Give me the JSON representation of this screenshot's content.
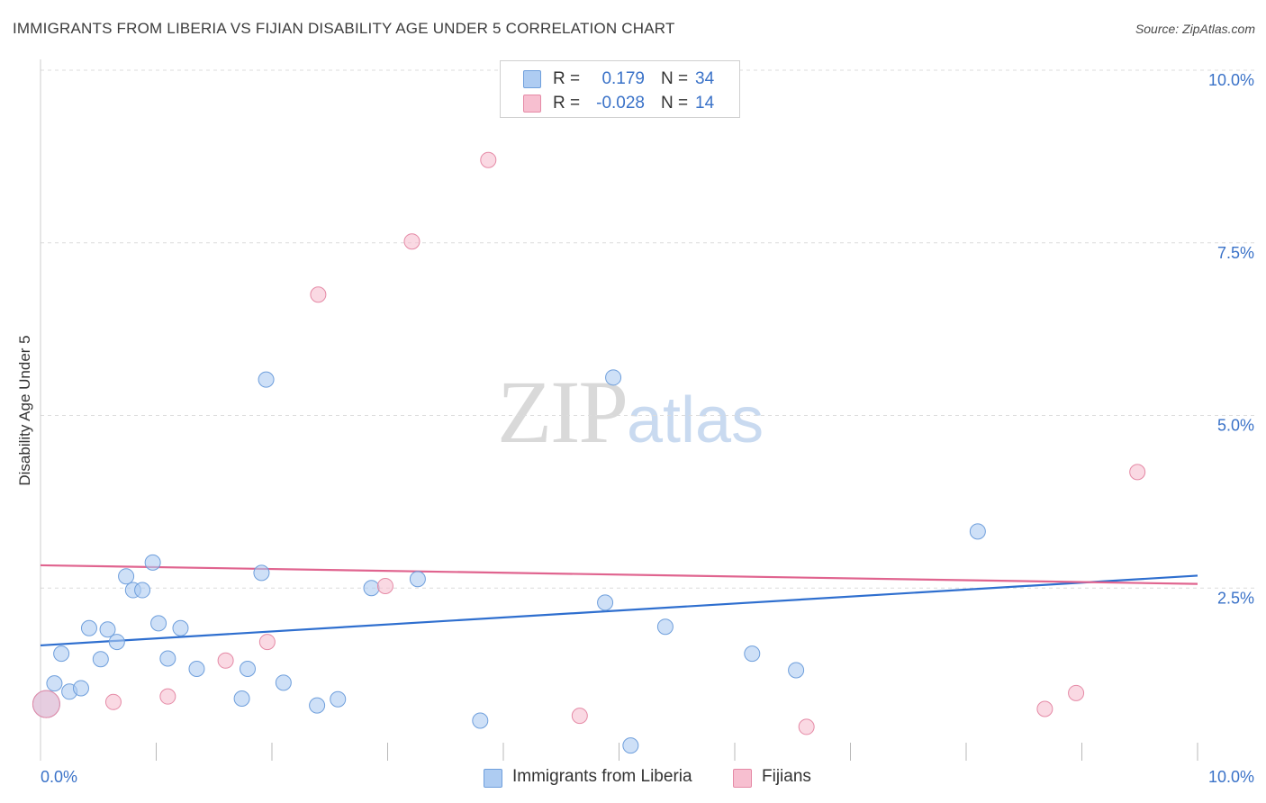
{
  "header": {
    "title": "IMMIGRANTS FROM LIBERIA VS FIJIAN DISABILITY AGE UNDER 5 CORRELATION CHART",
    "source": "Source: ZipAtlas.com"
  },
  "watermark": {
    "zip": "ZIP",
    "atlas": "atlas"
  },
  "legend": {
    "rows": [
      {
        "r_label": "R =",
        "r_value": "0.179",
        "n_label": "N =",
        "n_value": "34",
        "color": "#aeccf2"
      },
      {
        "r_label": "R =",
        "r_value": "-0.028",
        "n_label": "N =",
        "n_value": "14",
        "color": "#f7bfd0"
      }
    ]
  },
  "bottom_legend": {
    "items": [
      {
        "label": "Immigrants from Liberia",
        "color": "#aeccf2"
      },
      {
        "label": "Fijians",
        "color": "#f7bfd0"
      }
    ]
  },
  "chart_data": {
    "type": "scatter",
    "title": "IMMIGRANTS FROM LIBERIA VS FIJIAN DISABILITY AGE UNDER 5 CORRELATION CHART",
    "xlabel": "",
    "ylabel": "Disability Age Under 5",
    "xlim": [
      0,
      10
    ],
    "ylim": [
      0,
      10
    ],
    "x_tick_labels": [
      "0.0%",
      "10.0%"
    ],
    "y_tick_labels": [
      "2.5%",
      "5.0%",
      "7.5%",
      "10.0%"
    ],
    "y_ticks": [
      2.5,
      5.0,
      7.5,
      10.0
    ],
    "grid": true,
    "legend_position": "top-center",
    "series": [
      {
        "name": "Immigrants from Liberia",
        "color": "#aeccf2",
        "stroke": "#6f9fdc",
        "trend_color": "#2f6fcf",
        "trend": [
          [
            0,
            1.67
          ],
          [
            10,
            2.68
          ]
        ],
        "points": [
          [
            0.05,
            0.82
          ],
          [
            0.12,
            1.12
          ],
          [
            0.18,
            1.55
          ],
          [
            0.25,
            1.0
          ],
          [
            0.35,
            1.05
          ],
          [
            0.42,
            1.92
          ],
          [
            0.52,
            1.47
          ],
          [
            0.58,
            1.9
          ],
          [
            0.66,
            1.72
          ],
          [
            0.74,
            2.67
          ],
          [
            0.8,
            2.47
          ],
          [
            0.88,
            2.47
          ],
          [
            0.97,
            2.87
          ],
          [
            1.02,
            1.99
          ],
          [
            1.1,
            1.48
          ],
          [
            1.21,
            1.92
          ],
          [
            1.35,
            1.33
          ],
          [
            1.74,
            0.9
          ],
          [
            1.79,
            1.33
          ],
          [
            1.91,
            2.72
          ],
          [
            1.95,
            5.52
          ],
          [
            2.1,
            1.13
          ],
          [
            2.39,
            0.8
          ],
          [
            2.57,
            0.89
          ],
          [
            2.86,
            2.5
          ],
          [
            3.26,
            2.63
          ],
          [
            3.8,
            0.58
          ],
          [
            4.88,
            2.29
          ],
          [
            4.95,
            5.55
          ],
          [
            5.1,
            0.22
          ],
          [
            5.4,
            1.94
          ],
          [
            6.15,
            1.55
          ],
          [
            6.53,
            1.31
          ],
          [
            8.1,
            3.32
          ]
        ]
      },
      {
        "name": "Fijians",
        "color": "#f7bfd0",
        "stroke": "#e58aa6",
        "trend_color": "#e0648f",
        "trend": [
          [
            0,
            2.83
          ],
          [
            10,
            2.56
          ]
        ],
        "points": [
          [
            0.05,
            0.82
          ],
          [
            0.63,
            0.85
          ],
          [
            1.1,
            0.93
          ],
          [
            1.6,
            1.45
          ],
          [
            1.96,
            1.72
          ],
          [
            2.4,
            6.75
          ],
          [
            2.98,
            2.53
          ],
          [
            3.21,
            7.52
          ],
          [
            3.87,
            8.7
          ],
          [
            4.66,
            0.65
          ],
          [
            6.62,
            0.49
          ],
          [
            8.68,
            0.75
          ],
          [
            8.95,
            0.98
          ],
          [
            9.48,
            4.18
          ]
        ]
      }
    ]
  }
}
